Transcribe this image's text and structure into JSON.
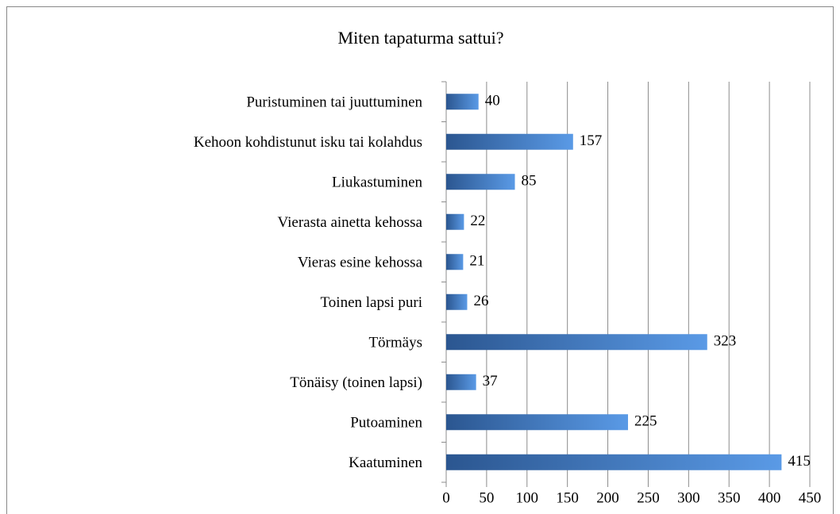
{
  "chart_data": {
    "type": "barh",
    "title": "Miten tapaturma sattui?",
    "categories": [
      "Puristuminen tai juuttuminen",
      "Kehoon kohdistunut isku tai kolahdus",
      "Liukastuminen",
      "Vierasta ainetta kehossa",
      "Vieras esine kehossa",
      "Toinen lapsi puri",
      "Törmäys",
      "Tönäisy (toinen lapsi)",
      "Putoaminen",
      "Kaatuminen"
    ],
    "values": [
      40,
      157,
      85,
      22,
      21,
      26,
      323,
      37,
      225,
      415
    ],
    "color": [
      "#2b5690",
      "#5a9ae6"
    ],
    "xlim": [
      0,
      450
    ],
    "xticks": [
      0,
      50,
      100,
      150,
      200,
      250,
      300,
      350,
      400,
      450
    ],
    "grid": true
  }
}
